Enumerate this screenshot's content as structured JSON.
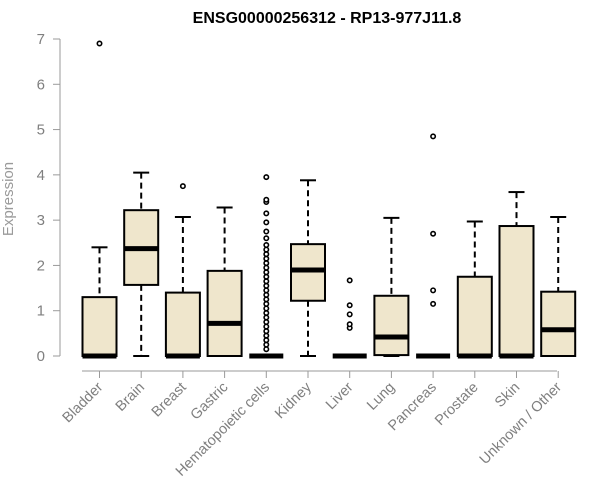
{
  "chart_data": {
    "type": "boxplot",
    "title": "ENSG00000256312 - RP13-977J11.8",
    "ylabel": "Expression",
    "xlabel": "",
    "ylim": [
      0,
      7
    ],
    "yticks": [
      0,
      1,
      2,
      3,
      4,
      5,
      6,
      7
    ],
    "grid": false,
    "colors": {
      "box_fill": "#efe6cc",
      "box_stroke": "#000000",
      "axis": "#9a9a9a"
    },
    "categories": [
      "Bladder",
      "Brain",
      "Breast",
      "Gastric",
      "Hematopoietic cells",
      "Kidney",
      "Liver",
      "Lung",
      "Pancreas",
      "Prostate",
      "Skin",
      "Unknown / Other"
    ],
    "boxes": [
      {
        "min": 0,
        "q1": 0,
        "median": 0,
        "q3": 1.3,
        "max": 2.4,
        "outliers": [
          6.9
        ]
      },
      {
        "min": 0,
        "q1": 1.57,
        "median": 2.37,
        "q3": 3.22,
        "max": 4.05,
        "outliers": []
      },
      {
        "min": 0,
        "q1": 0,
        "median": 0,
        "q3": 1.4,
        "max": 3.07,
        "outliers": [
          3.75
        ]
      },
      {
        "min": 0,
        "q1": 0,
        "median": 0.72,
        "q3": 1.88,
        "max": 3.28,
        "outliers": []
      },
      {
        "min": 0,
        "q1": 0,
        "median": 0,
        "q3": 0,
        "max": 0,
        "outliers": [
          0.15,
          0.25,
          0.35,
          0.45,
          0.55,
          0.65,
          0.75,
          0.85,
          0.95,
          1.05,
          1.15,
          1.25,
          1.35,
          1.45,
          1.55,
          1.65,
          1.75,
          1.85,
          1.95,
          2.05,
          2.15,
          2.25,
          2.35,
          2.45,
          2.6,
          2.75,
          2.95,
          3.15,
          3.4,
          3.45,
          3.95
        ]
      },
      {
        "min": 0,
        "q1": 1.22,
        "median": 1.9,
        "q3": 2.47,
        "max": 3.88,
        "outliers": []
      },
      {
        "min": 0,
        "q1": 0,
        "median": 0,
        "q3": 0,
        "max": 0,
        "outliers": [
          0.62,
          0.7,
          0.92,
          1.12,
          1.67
        ]
      },
      {
        "min": 0,
        "q1": 0.02,
        "median": 0.42,
        "q3": 1.33,
        "max": 3.05,
        "outliers": []
      },
      {
        "min": 0,
        "q1": 0,
        "median": 0,
        "q3": 0,
        "max": 0,
        "outliers": [
          1.15,
          1.45,
          2.7,
          4.85
        ]
      },
      {
        "min": 0,
        "q1": 0,
        "median": 0,
        "q3": 1.75,
        "max": 2.97,
        "outliers": []
      },
      {
        "min": 0,
        "q1": 0,
        "median": 0,
        "q3": 2.87,
        "max": 3.62,
        "outliers": []
      },
      {
        "min": 0,
        "q1": 0,
        "median": 0.58,
        "q3": 1.42,
        "max": 3.07,
        "outliers": []
      }
    ]
  }
}
